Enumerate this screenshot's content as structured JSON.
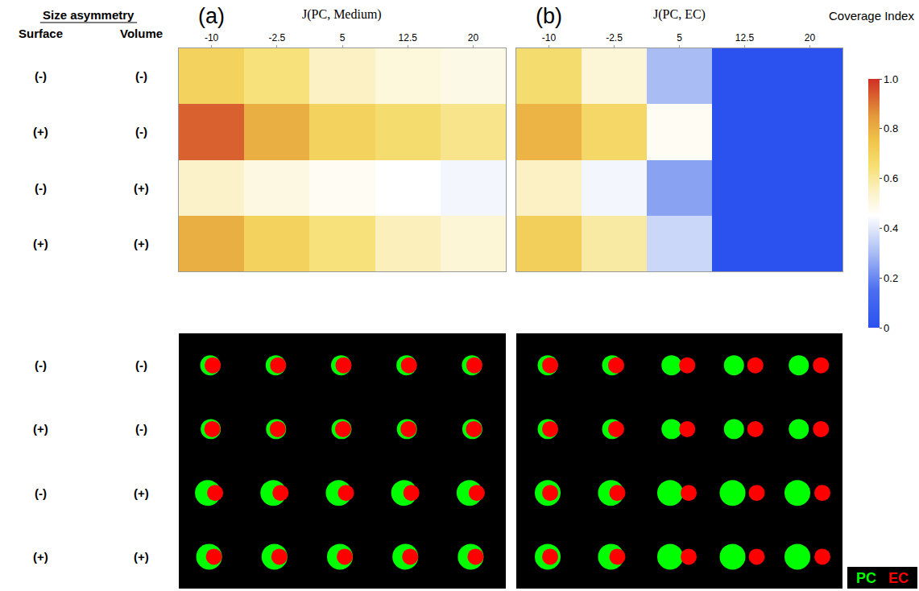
{
  "row_header": {
    "title": "Size asymmetry",
    "columns": [
      "Surface",
      "Volume"
    ],
    "rows": [
      [
        "(-)",
        "(-)"
      ],
      [
        "(+)",
        "(-)"
      ],
      [
        "(-)",
        "(+)"
      ],
      [
        "(+)",
        "(+)"
      ]
    ]
  },
  "chart_data": [
    {
      "type": "heatmap",
      "panel": "(a)",
      "xlabel": "J(PC, Medium)",
      "x": [
        -10,
        -2.5,
        5,
        12.5,
        20
      ],
      "xlim": [
        -13.75,
        23.75
      ],
      "xticks": [
        -10,
        -2.5,
        5,
        12.5,
        20
      ],
      "tick_labels": "x",
      "z": [
        [
          0.7,
          0.64,
          0.55,
          0.51,
          0.49
        ],
        [
          0.93,
          0.8,
          0.7,
          0.66,
          0.62
        ],
        [
          0.54,
          0.5,
          0.47,
          0.45,
          0.43
        ],
        [
          0.8,
          0.7,
          0.64,
          0.56,
          0.52
        ]
      ]
    },
    {
      "type": "heatmap",
      "panel": "(b)",
      "xlabel": "J(PC, EC)",
      "x": [
        -10,
        -2.5,
        5,
        12.5,
        20
      ],
      "xlim": [
        -13.75,
        23.75
      ],
      "xticks": [
        -10,
        -2.5,
        5,
        12.5,
        20
      ],
      "tick_labels": "x",
      "z": [
        [
          0.66,
          0.52,
          0.3,
          0,
          0
        ],
        [
          0.79,
          0.68,
          0.47,
          0,
          0
        ],
        [
          0.55,
          0.43,
          0.25,
          0,
          0
        ],
        [
          0.71,
          0.59,
          0.36,
          0,
          0
        ]
      ]
    }
  ],
  "colorbar": {
    "title": "Coverage Index",
    "zlim": [
      0,
      1
    ],
    "zticks": [
      0,
      0.2,
      0.4,
      0.6,
      0.8,
      {
        "value": 1,
        "label": "1.0"
      }
    ]
  },
  "snapshot_key": [
    {
      "name": "PC",
      "color": "#00ff00"
    },
    {
      "name": "EC",
      "color": "#ff0000"
    }
  ]
}
